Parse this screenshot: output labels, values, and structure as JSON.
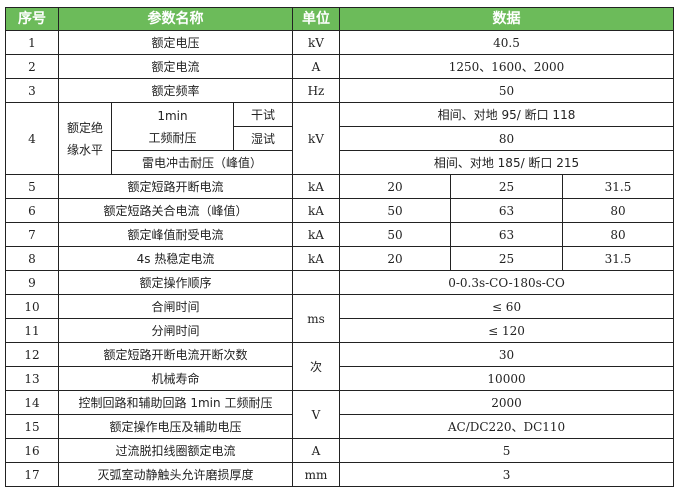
{
  "header": {
    "no": "序号",
    "param": "参数名称",
    "unit": "单位",
    "data": "数据"
  },
  "header_color": "#6cbb5a",
  "rows": {
    "r1": {
      "no": "1",
      "name": "额定电压",
      "unit": "kV",
      "value": "40.5"
    },
    "r2": {
      "no": "2",
      "name": "额定电流",
      "unit": "A",
      "value": "1250、1600、2000"
    },
    "r3": {
      "no": "3",
      "name": "额定频率",
      "unit": "Hz",
      "value": "50"
    },
    "r4": {
      "no": "4",
      "group": "额定绝缘水平",
      "sub1": "1min\n工频耐压",
      "dry": "干试",
      "wet": "湿试",
      "sub2": "雷电冲击耐压（峰值）",
      "unit": "kV",
      "dry_value": "相间、对地 95/ 断口 118",
      "wet_value": "80",
      "impulse_value": "相间、对地 185/ 断口 215"
    },
    "r5": {
      "no": "5",
      "name": "额定短路开断电流",
      "unit": "kA",
      "v1": "20",
      "v2": "25",
      "v3": "31.5"
    },
    "r6": {
      "no": "6",
      "name": "额定短路关合电流（峰值）",
      "unit": "kA",
      "v1": "50",
      "v2": "63",
      "v3": "80"
    },
    "r7": {
      "no": "7",
      "name": "额定峰值耐受电流",
      "unit": "kA",
      "v1": "50",
      "v2": "63",
      "v3": "80"
    },
    "r8": {
      "no": "8",
      "name": "4s 热稳定电流",
      "unit": "kA",
      "v1": "20",
      "v2": "25",
      "v3": "31.5"
    },
    "r9": {
      "no": "9",
      "name": "额定操作顺序",
      "unit": "",
      "value": "0-0.3s-CO-180s-CO"
    },
    "r10": {
      "no": "10",
      "name": "合闸时间",
      "unit": "ms",
      "value": "≤ 60"
    },
    "r11": {
      "no": "11",
      "name": "分闸时间",
      "value": "≤ 120"
    },
    "r12": {
      "no": "12",
      "name": "额定短路开断电流开断次数",
      "unit": "次",
      "value": "30"
    },
    "r13": {
      "no": "13",
      "name": "机械寿命",
      "value": "10000"
    },
    "r14": {
      "no": "14",
      "name": "控制回路和辅助回路 1min 工频耐压",
      "unit": "V",
      "value": "2000"
    },
    "r15": {
      "no": "15",
      "name": "额定操作电压及辅助电压",
      "value": "AC/DC220、DC110"
    },
    "r16": {
      "no": "16",
      "name": "过流脱扣线圈额定电流",
      "unit": "A",
      "value": "5"
    },
    "r17": {
      "no": "17",
      "name": "灭弧室动静触头允许磨损厚度",
      "unit": "mm",
      "value": "3"
    }
  }
}
